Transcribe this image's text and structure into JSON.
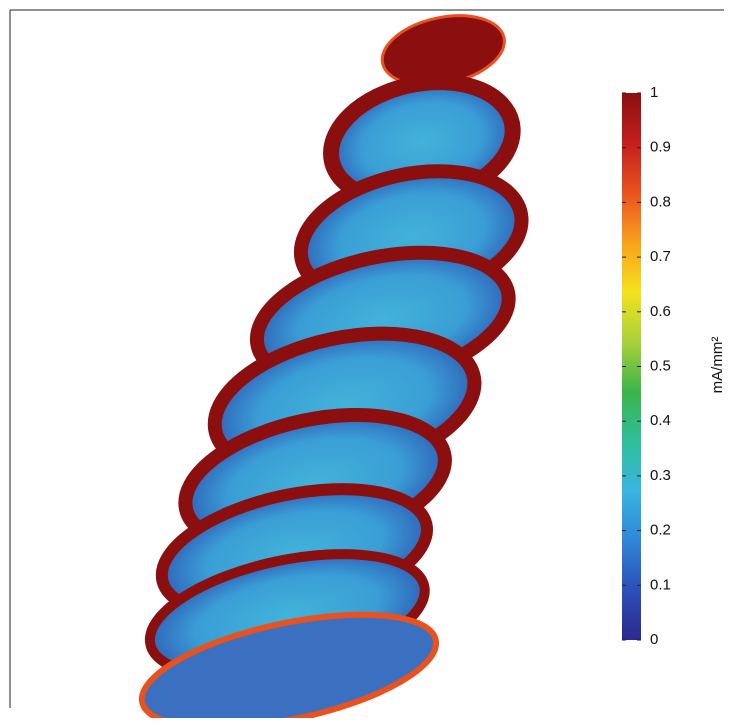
{
  "chart_data": {
    "type": "colorbar",
    "colorbar_label": "mA/mm²",
    "clim": [
      0,
      1
    ],
    "cticks": [
      0,
      0.1,
      0.2,
      0.3,
      0.4,
      0.5,
      0.6,
      0.7,
      0.8,
      0.9,
      1
    ],
    "colormap": [
      "#2b2a8c",
      "#2c4fb8",
      "#2f86d6",
      "#3ab5e0",
      "#2fbf9a",
      "#3bb54a",
      "#a9d13a",
      "#f5e11c",
      "#f9a11b",
      "#e9511f",
      "#c41e1e",
      "#8b0f0f"
    ]
  }
}
